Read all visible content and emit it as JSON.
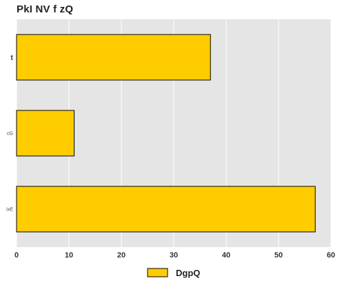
{
  "chart_data": {
    "type": "bar",
    "orientation": "horizontal",
    "title": "PkI  NV f zQ",
    "categories": [
      "t",
      "cG",
      "ixE"
    ],
    "series": [
      {
        "name": "DgpQ",
        "values": [
          37,
          11,
          57
        ],
        "color": "#ffcc00"
      }
    ],
    "xlim": [
      0,
      60
    ],
    "xticks": [
      0,
      10,
      20,
      30,
      40,
      50,
      60
    ],
    "xlabel": "",
    "ylabel": "",
    "grid": true,
    "legend_position": "bottom"
  },
  "colors": {
    "plot_background": "#e5e5e5",
    "grid": "#ffffff",
    "bar_edge": "#000000",
    "text": "#222222"
  }
}
